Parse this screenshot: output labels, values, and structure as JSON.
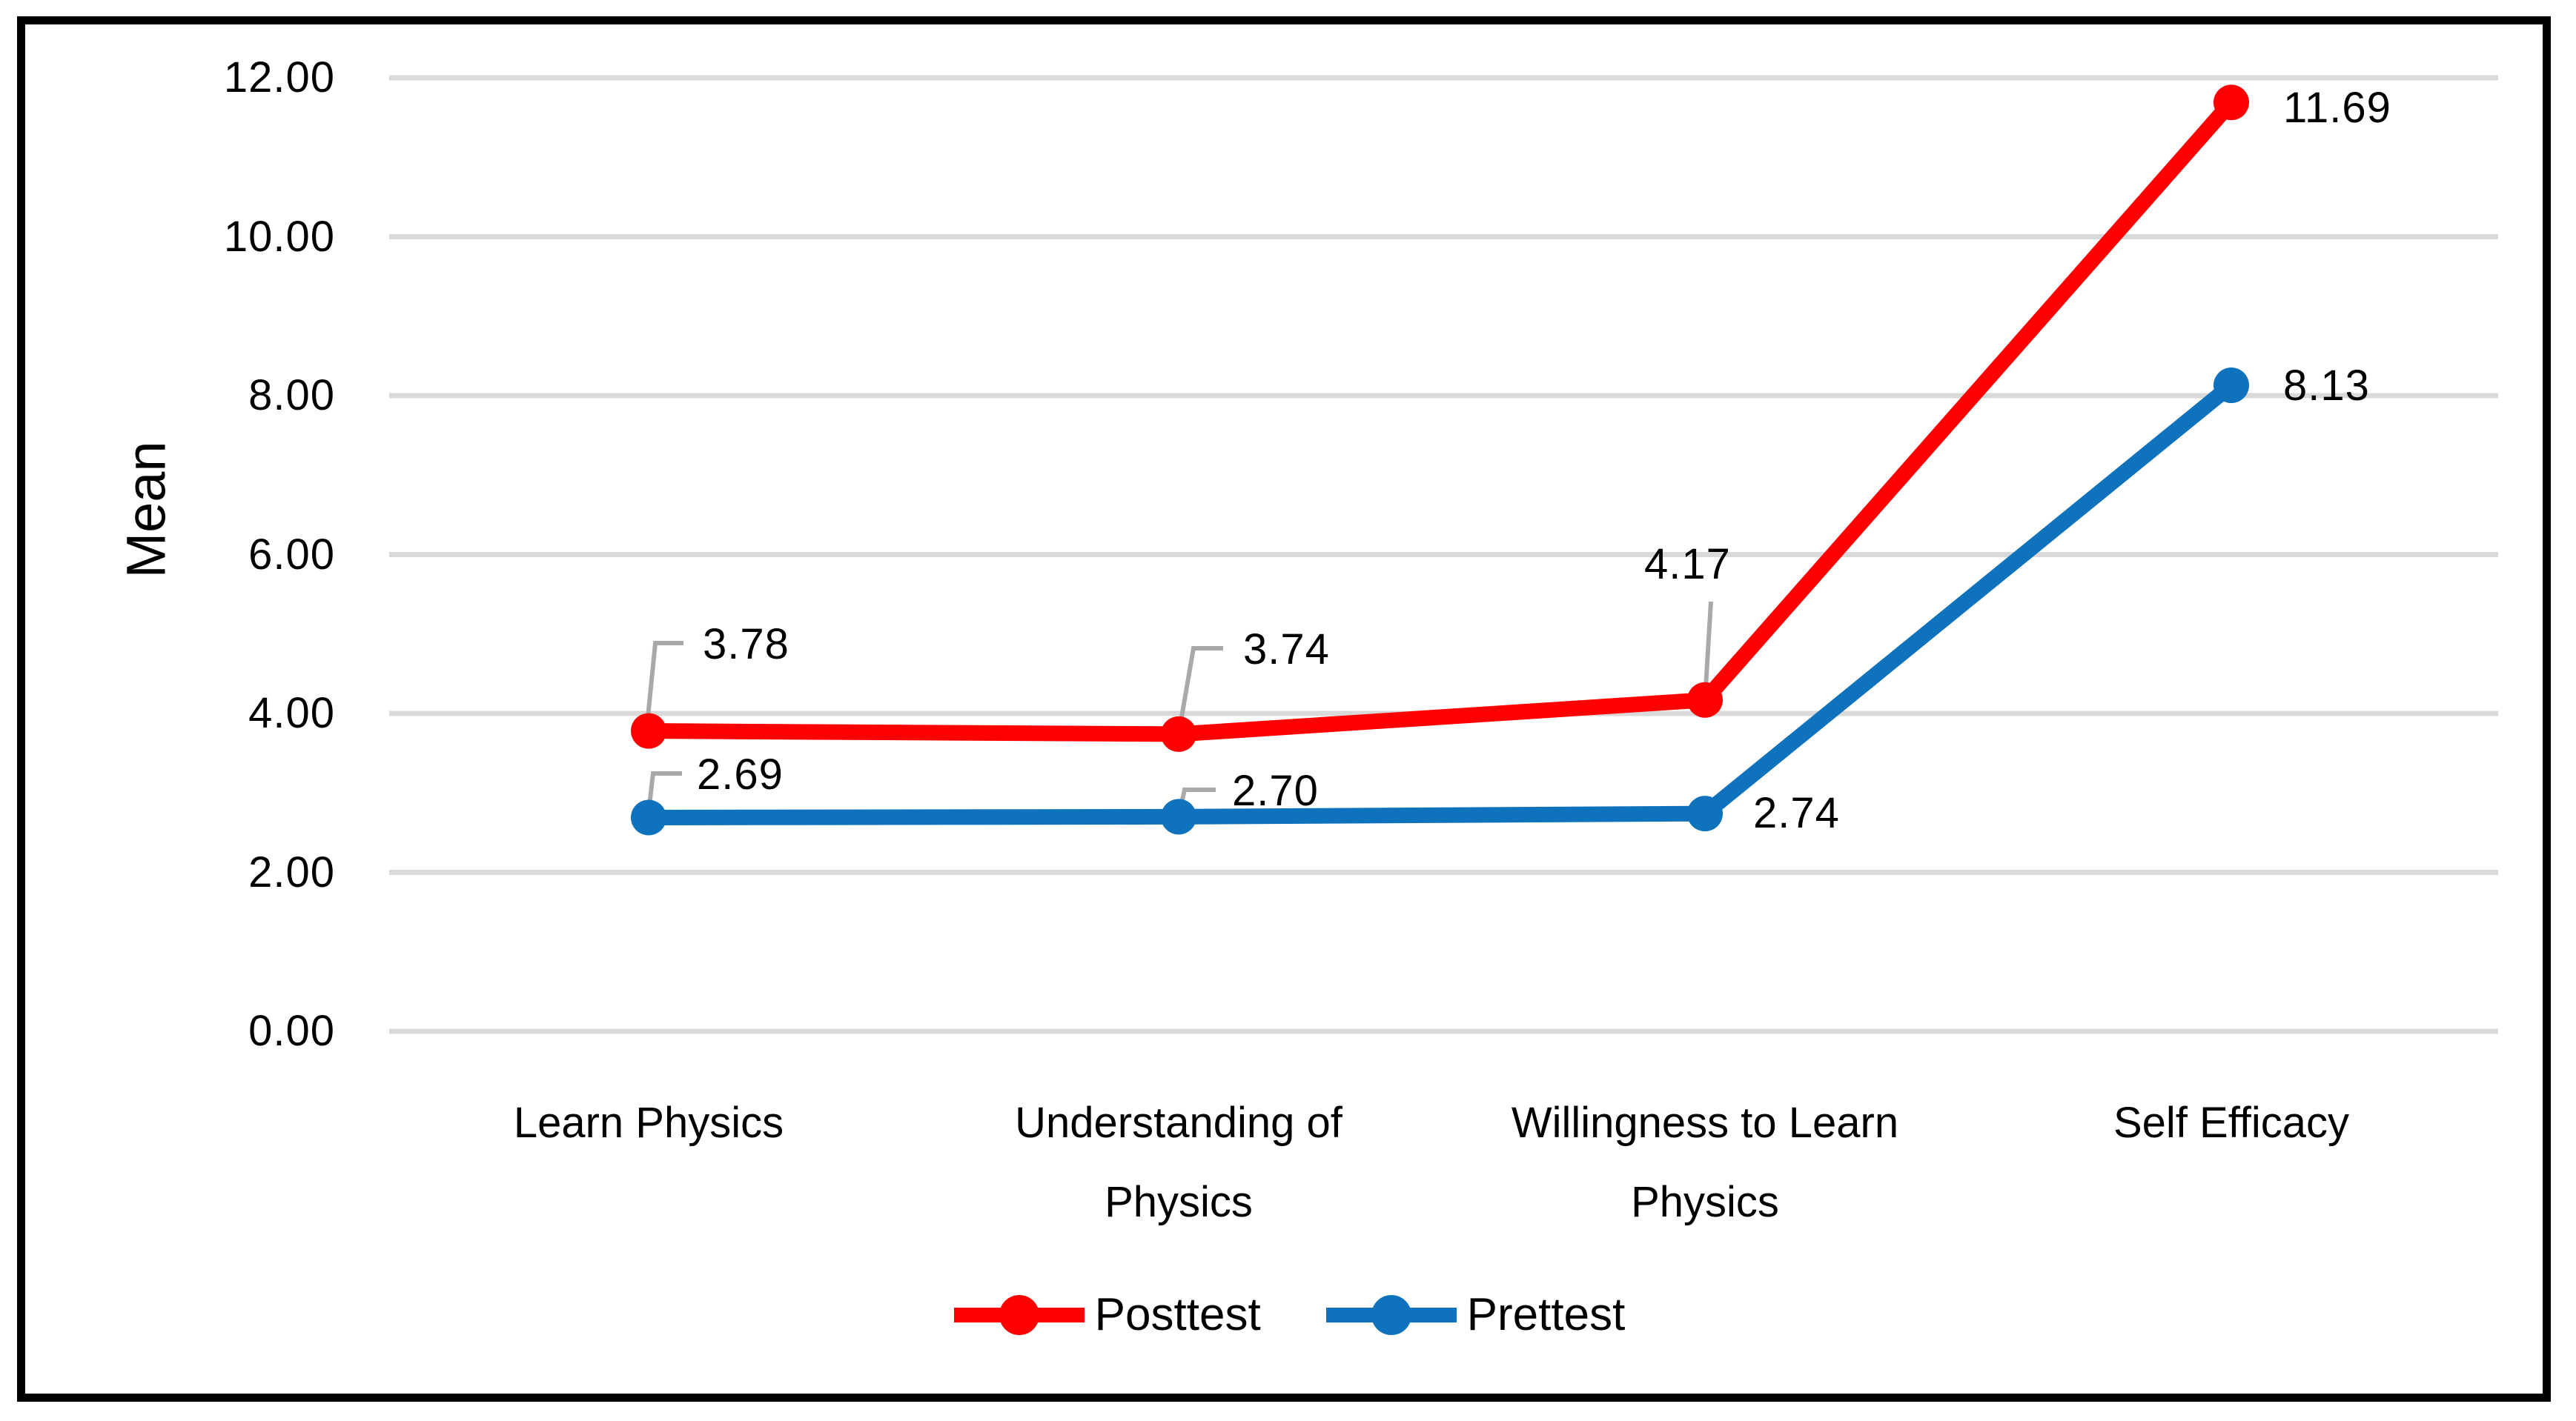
{
  "chart_data": {
    "type": "line",
    "title": "",
    "xlabel": "",
    "ylabel": "Mean",
    "categories": [
      "Learn Physics",
      "Understanding of Physics",
      "Willingness to Learn Physics",
      "Self Efficacy"
    ],
    "series": [
      {
        "name": "Posttest",
        "color": "#FF0000",
        "values": [
          3.78,
          3.74,
          4.17,
          11.69
        ],
        "labels": [
          "3.78",
          "3.74",
          "4.17",
          "11.69"
        ]
      },
      {
        "name": "Prettest",
        "color": "#0F72BC",
        "values": [
          2.69,
          2.7,
          2.74,
          8.13
        ],
        "labels": [
          "2.69",
          "2.70",
          "2.74",
          "8.13"
        ]
      }
    ],
    "y_axis": {
      "min": 0,
      "max": 12,
      "step": 2,
      "tick_labels": [
        "0.00",
        "2.00",
        "4.00",
        "6.00",
        "8.00",
        "10.00",
        "12.00"
      ]
    },
    "grid": true,
    "legend_position": "bottom",
    "colors": {
      "gridline": "#D9D9D9",
      "leader_line": "#A9A9A9",
      "border": "#000000",
      "text": "#000000",
      "background": "#FFFFFF"
    }
  }
}
